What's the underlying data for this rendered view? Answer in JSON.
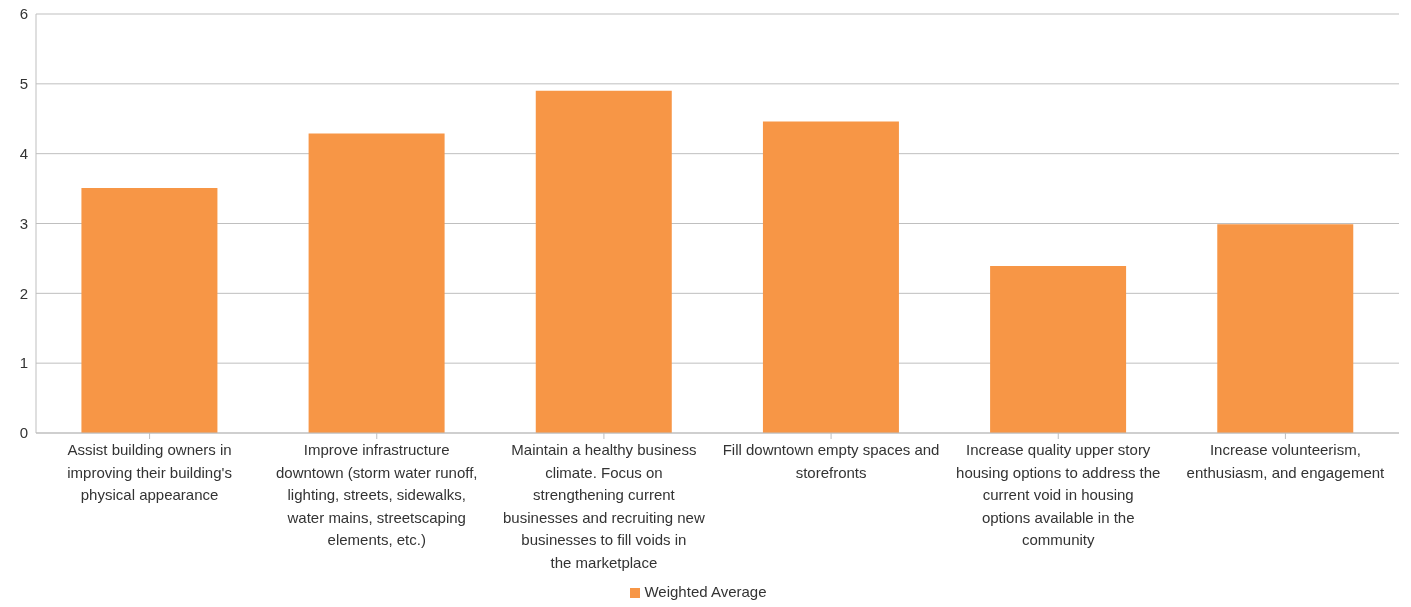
{
  "chart_data": {
    "type": "bar",
    "categories": [
      "Assist building owners in improving their building's physical appearance",
      "Improve infrastructure downtown (storm water runoff, lighting, streets, sidewalks, water mains, streetscaping elements, etc.)",
      "Maintain a healthy business climate. Focus on strengthening current businesses and recruiting new businesses to fill voids in the marketplace",
      "Fill downtown empty spaces and storefronts",
      "Increase quality upper story housing options to address the current void in housing options available in the community",
      "Increase volunteerism, enthusiasm, and engagement"
    ],
    "series": [
      {
        "name": "Weighted Average",
        "color": "#f79646",
        "values": [
          3.51,
          4.29,
          4.9,
          4.46,
          2.39,
          2.99
        ]
      }
    ],
    "ylim": [
      0,
      6
    ],
    "yticks": [
      0,
      1,
      2,
      3,
      4,
      5,
      6
    ],
    "grid": "y",
    "legend": "bottom"
  }
}
